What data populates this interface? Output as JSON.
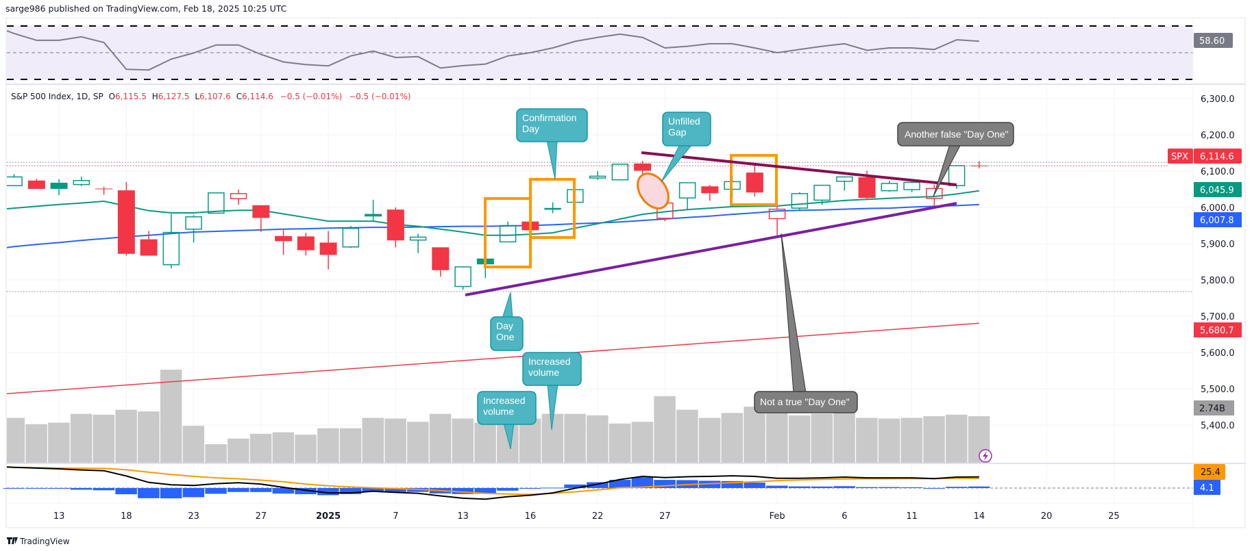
{
  "header": {
    "published": "sarge986 published on TradingView.com, Feb 18, 2025 10:25 UTC"
  },
  "legend": {
    "symbol": "S&P 500 Index, 1D, SP",
    "o_label": "O",
    "o": "6,115.5",
    "h_label": "H",
    "h": "6,127.5",
    "l_label": "L",
    "l": "6,107.6",
    "c_label": "C",
    "c": "6,114.6",
    "change1": "−0.5 (−0.01%)",
    "change2": "−0.5 (−0.01%)"
  },
  "price_axis": {
    "ticks": [
      "6,300.0",
      "6,200.0",
      "6,100.0",
      "6,000.0",
      "5,900.0",
      "5,800.0",
      "5,700.0",
      "5,600.0",
      "5,500.0",
      "5,400.0"
    ],
    "tick_values": [
      6300,
      6200,
      6100,
      6000,
      5900,
      5800,
      5700,
      5600,
      5500,
      5400
    ],
    "labels": {
      "symbol_tag": "SPX",
      "last_price": "6,114.6",
      "green_ma": "6,045.9",
      "blue_ma": "6,007.8",
      "red_ma": "5,680.7",
      "volume": "2.74B",
      "rsi": "58.60",
      "macd_signal": "25.4",
      "macd_hist": "4.1"
    }
  },
  "colors": {
    "up": "#089981",
    "down": "#f23645",
    "green_ma": "#089981",
    "blue_ma": "#2962ff",
    "red_ma": "#f23645",
    "volume": "#c9c9c9",
    "rsi_line": "#7e7b87",
    "rsi_band": "#f0ecf9",
    "macd_line": "#000000",
    "signal_line": "#ff9800",
    "hist": "#2962ff",
    "annotation_teal": "#4db6c2",
    "annotation_gray": "#7f7f7f",
    "box_orange": "#ff9800",
    "resistance_line": "#880e4f",
    "support_line": "#7b1fa2"
  },
  "x_axis": {
    "ticks": [
      {
        "label": "13",
        "date": "2024-12-13"
      },
      {
        "label": "18",
        "date": "2024-12-18"
      },
      {
        "label": "23",
        "date": "2024-12-23"
      },
      {
        "label": "27",
        "date": "2024-12-27"
      },
      {
        "label": "2025",
        "date": "2025-01-02",
        "bold": true
      },
      {
        "label": "7",
        "date": "2025-01-07"
      },
      {
        "label": "13",
        "date": "2025-01-13"
      },
      {
        "label": "16",
        "date": "2025-01-16"
      },
      {
        "label": "22",
        "date": "2025-01-22"
      },
      {
        "label": "27",
        "date": "2025-01-27"
      },
      {
        "label": "Feb",
        "date": "2025-02-03"
      },
      {
        "label": "6",
        "date": "2025-02-06"
      },
      {
        "label": "11",
        "date": "2025-02-11"
      },
      {
        "label": "14",
        "date": "2025-02-14"
      },
      {
        "label": "20",
        "date": "2025-02-20"
      },
      {
        "label": "25",
        "date": "2025-02-25"
      }
    ]
  },
  "chart_data": {
    "type": "candlestick",
    "symbol": "SPX",
    "interval": "1D",
    "ylim": [
      5380,
      6330
    ],
    "grid": true,
    "dates": [
      "2024-12-11",
      "2024-12-12",
      "2024-12-13",
      "2024-12-16",
      "2024-12-17",
      "2024-12-18",
      "2024-12-19",
      "2024-12-20",
      "2024-12-23",
      "2024-12-24",
      "2024-12-26",
      "2024-12-27",
      "2024-12-30",
      "2024-12-31",
      "2025-01-02",
      "2025-01-03",
      "2025-01-06",
      "2025-01-07",
      "2025-01-08",
      "2025-01-10",
      "2025-01-13",
      "2025-01-14",
      "2025-01-15",
      "2025-01-16",
      "2025-01-17",
      "2025-01-21",
      "2025-01-22",
      "2025-01-23",
      "2025-01-24",
      "2025-01-27",
      "2025-01-28",
      "2025-01-29",
      "2025-01-30",
      "2025-01-31",
      "2025-02-03",
      "2025-02-04",
      "2025-02-05",
      "2025-02-06",
      "2025-02-07",
      "2025-02-10",
      "2025-02-11",
      "2025-02-12",
      "2025-02-13",
      "2025-02-14"
    ],
    "ohlc": [
      [
        6060,
        6092,
        6060,
        6084
      ],
      [
        6074,
        6079,
        6051,
        6051
      ],
      [
        6068,
        6078,
        6034,
        6051
      ],
      [
        6063,
        6085,
        6059,
        6074
      ],
      [
        6052,
        6057,
        6035,
        6051
      ],
      [
        6047,
        6070,
        5867,
        5872
      ],
      [
        5912,
        5935,
        5867,
        5867
      ],
      [
        5842,
        5982,
        5832,
        5931
      ],
      [
        5940,
        5979,
        5903,
        5974
      ],
      [
        5984,
        6040,
        5983,
        6040
      ],
      [
        6024,
        6049,
        6007,
        6038
      ],
      [
        6006,
        6006,
        5932,
        5971
      ],
      [
        5921,
        5941,
        5869,
        5907
      ],
      [
        5920,
        5930,
        5868,
        5882
      ],
      [
        5903,
        5935,
        5829,
        5869
      ],
      [
        5891,
        5949,
        5888,
        5942
      ],
      [
        5982,
        6021,
        5960,
        5975
      ],
      [
        5994,
        6000,
        5890,
        5909
      ],
      [
        5910,
        5927,
        5874,
        5918
      ],
      [
        5890,
        5890,
        5809,
        5827
      ],
      [
        5782,
        5838,
        5773,
        5836
      ],
      [
        5859,
        5871,
        5805,
        5843
      ],
      [
        5905,
        5961,
        5905,
        5950
      ],
      [
        5961,
        5965,
        5931,
        5937
      ],
      [
        5996,
        6014,
        5984,
        5997
      ],
      [
        6014,
        6051,
        5990,
        6049
      ],
      [
        6081,
        6100,
        6076,
        6086
      ],
      [
        6076,
        6118,
        6075,
        6119
      ],
      [
        6121,
        6128,
        6088,
        6101
      ],
      [
        5970,
        6017,
        5962,
        6012
      ],
      [
        6026,
        6069,
        5995,
        6068
      ],
      [
        6058,
        6062,
        6018,
        6039
      ],
      [
        6050,
        6086,
        6029,
        6071
      ],
      [
        6096,
        6120,
        6030,
        6041
      ],
      [
        5969,
        6022,
        5923,
        5995
      ],
      [
        5998,
        6042,
        5990,
        6038
      ],
      [
        6020,
        6062,
        6007,
        6061
      ],
      [
        6072,
        6084,
        6046,
        6084
      ],
      [
        6083,
        6101,
        6020,
        6026
      ],
      [
        6046,
        6073,
        6043,
        6066
      ],
      [
        6049,
        6076,
        6042,
        6069
      ],
      [
        6025,
        6063,
        6003,
        6052
      ],
      [
        6060,
        6116,
        6051,
        6115
      ],
      [
        6115.5,
        6127.5,
        6107.6,
        6114.6
      ]
    ],
    "green_ma": [
      5998,
      6003,
      6008,
      6012,
      6017,
      6004,
      5991,
      5985,
      5985,
      5989,
      5992,
      5992,
      5982,
      5972,
      5962,
      5962,
      5962,
      5953,
      5948,
      5940,
      5932,
      5923,
      5923,
      5926,
      5930,
      5943,
      5955,
      5968,
      5981,
      5988,
      5994,
      5998,
      6002,
      6003,
      6004,
      6009,
      6014,
      6019,
      6022,
      6025,
      6028,
      6030,
      6037,
      6045.9
    ],
    "blue_ma": [
      5892,
      5898,
      5903,
      5909,
      5914,
      5919,
      5923,
      5928,
      5932,
      5934,
      5936,
      5938,
      5940,
      5941,
      5943,
      5944,
      5945,
      5945,
      5946,
      5947,
      5948,
      5948,
      5949,
      5950,
      5952,
      5955,
      5957,
      5960,
      5964,
      5968,
      5972,
      5976,
      5981,
      5985,
      5990,
      5992,
      5993,
      5995,
      5997,
      5998,
      6001,
      6003,
      6005,
      6007.8
    ],
    "red_ma_endpoints": {
      "first": 5488,
      "last": 5680.7
    },
    "volume_billions": [
      2.64,
      2.27,
      2.36,
      2.88,
      2.83,
      3.12,
      3.02,
      5.48,
      2.17,
      1.09,
      1.42,
      1.7,
      1.79,
      1.65,
      2.03,
      2.03,
      2.64,
      2.6,
      2.41,
      2.88,
      2.6,
      2.36,
      2.31,
      2.6,
      2.88,
      2.88,
      2.79,
      2.31,
      2.41,
      3.92,
      3.12,
      2.64,
      2.93,
      3.3,
      3.02,
      2.79,
      2.88,
      2.93,
      2.64,
      2.6,
      2.64,
      2.74,
      2.83,
      2.74
    ],
    "rsi": {
      "upper": 70,
      "middle": 50,
      "lower": 30,
      "values": [
        64.4,
        59.3,
        59.3,
        61.9,
        57.7,
        37.6,
        37.1,
        45.2,
        49.8,
        55.8,
        55.8,
        48.7,
        43.1,
        41.1,
        40.1,
        47.6,
        51.2,
        46.4,
        47.0,
        38.5,
        40.3,
        41.5,
        47.6,
        50.0,
        53.6,
        58.5,
        61.5,
        63.9,
        61.5,
        53.6,
        54.8,
        56.7,
        56.7,
        53.6,
        50.0,
        52.4,
        54.8,
        56.7,
        51.8,
        53.6,
        53.6,
        52.4,
        59.7,
        58.6
      ]
    },
    "macd": {
      "macd_line": [
        55,
        53,
        51,
        48,
        46,
        32,
        15,
        8.6,
        6.7,
        11.7,
        14,
        10.4,
        1.8,
        -6,
        -13,
        -13,
        -8.6,
        -11.7,
        -14,
        -21,
        -27,
        -29.4,
        -23,
        -19,
        -13,
        -0.6,
        10.4,
        22.7,
        31,
        27.6,
        30,
        31,
        32.5,
        31,
        25.8,
        25.8,
        27,
        29,
        27,
        27,
        27,
        25,
        29,
        29.5
      ],
      "signal_line": [
        55,
        54,
        53,
        52.5,
        52,
        48.5,
        42,
        36,
        31,
        27,
        24.5,
        21,
        16.6,
        10.4,
        6,
        3,
        0.6,
        -1.2,
        -3.7,
        -6.7,
        -11,
        -14,
        -16,
        -17,
        -14,
        -10,
        -5,
        1,
        2.5,
        6,
        9,
        11.7,
        14,
        16.6,
        19.6,
        21.5,
        23,
        24,
        24.5,
        24.5,
        25,
        25,
        25.8,
        25.4
      ]
    },
    "reference_lines": {
      "high_dotted": 6124,
      "close_dotted": 6114.6,
      "low_dotted": 5768
    }
  },
  "annotations": {
    "confirmation_day": "Confirmation Day",
    "unfilled_gap": "Unfilled Gap",
    "day_one": "Day One",
    "increased_volume_1": "Increased volume",
    "increased_volume_2": "Increased volume",
    "not_true_day_one": "Not a true \"Day One\"",
    "another_false_day_one": "Another false \"Day One\""
  },
  "footer": {
    "brand": "TradingView"
  }
}
